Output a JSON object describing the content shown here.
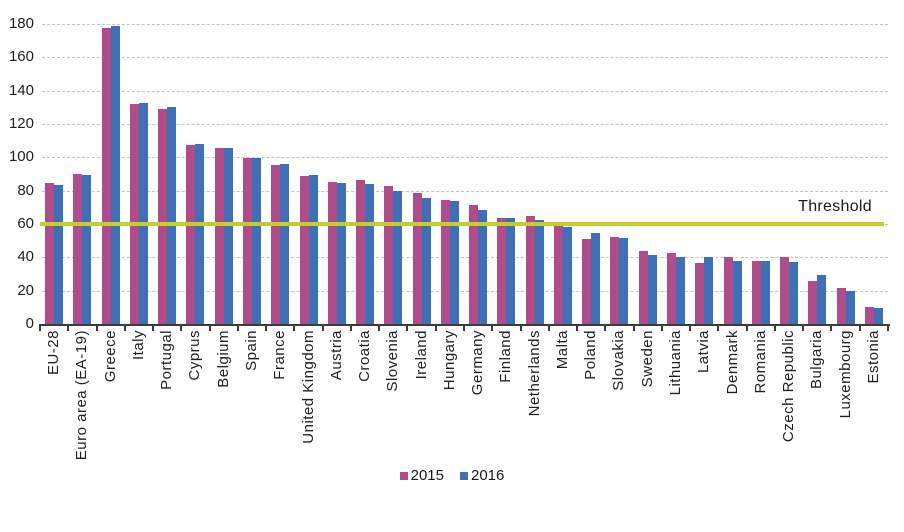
{
  "chart_data": {
    "type": "bar",
    "title": "",
    "xlabel": "",
    "ylabel": "",
    "ylim": [
      0,
      180
    ],
    "ytick_step": 20,
    "ytick_labels": [
      "0",
      "20",
      "40",
      "60",
      "80",
      "100",
      "120",
      "140",
      "160",
      "180"
    ],
    "grid": "horizontal-dashed",
    "legend_position": "bottom-center",
    "categories": [
      "EU-28",
      "Euro area (EA-19)",
      "Greece",
      "Italy",
      "Portugal",
      "Cyprus",
      "Belgium",
      "Spain",
      "France",
      "United Kingdom",
      "Austria",
      "Croatia",
      "Slovenia",
      "Ireland",
      "Hungary",
      "Germany",
      "Finland",
      "Netherlands",
      "Malta",
      "Poland",
      "Slovakia",
      "Sweden",
      "Lithuania",
      "Latvia",
      "Denmark",
      "Romania",
      "Czech Republic",
      "Bulgaria",
      "Luxembourg",
      "Estonia"
    ],
    "series": [
      {
        "name": "2015",
        "color": "#AE4C8C",
        "values": [
          84.9,
          90.3,
          177.4,
          132.1,
          129.0,
          107.5,
          105.8,
          99.8,
          95.6,
          89.0,
          85.5,
          86.7,
          83.1,
          78.7,
          74.7,
          71.2,
          63.7,
          65.1,
          60.6,
          51.1,
          52.5,
          43.9,
          42.7,
          36.5,
          40.4,
          38.0,
          40.3,
          26.0,
          21.6,
          10.1
        ]
      },
      {
        "name": "2016",
        "color": "#3F6FB5",
        "values": [
          83.5,
          89.2,
          179.0,
          132.6,
          130.4,
          107.8,
          105.9,
          99.4,
          96.0,
          89.3,
          84.6,
          84.2,
          79.7,
          75.4,
          74.1,
          68.3,
          63.6,
          62.3,
          58.3,
          54.4,
          51.9,
          41.6,
          40.2,
          40.1,
          37.8,
          37.6,
          37.2,
          29.5,
          20.0,
          9.5
        ]
      }
    ],
    "threshold": {
      "label": "Threshold",
      "value": 60,
      "color": "#C3CE2B"
    },
    "gridline_color": "#c3c3c3",
    "axis_color": "#3b3b3b"
  }
}
